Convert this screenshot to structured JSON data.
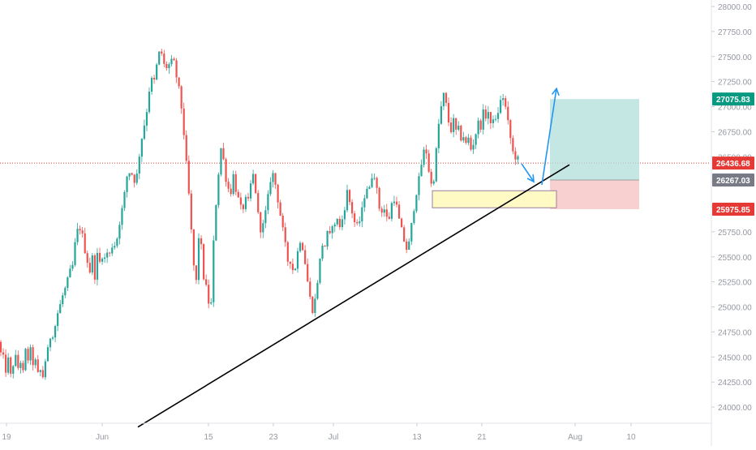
{
  "colors": {
    "background": "#ffffff",
    "up_candle": "#26a69a",
    "down_candle": "#ef5350",
    "axis_text": "#9598a1",
    "price_line": "#e53935",
    "profit_zone": "#b2dfdb",
    "loss_zone": "#f8c4c4",
    "demand_zone": "#fff9c4",
    "demand_border": "#9c7ca0",
    "arrow": "#2196f3",
    "trendline": "#000000",
    "tag_green": "#089981",
    "tag_red": "#e53935",
    "tag_gray": "#787b86"
  },
  "chart_data": {
    "type": "candlestick",
    "y_ticks": [
      "28000.00",
      "27750.00",
      "27500.00",
      "27250.00",
      "27000.00",
      "26750.00",
      "26500.00",
      "26250.00",
      "26000.00",
      "25750.00",
      "25500.00",
      "25250.00",
      "25000.00",
      "24750.00",
      "24500.00",
      "24250.00",
      "24000.00"
    ],
    "x_ticks": [
      "19",
      "Jun",
      "15",
      "23",
      "Jul",
      "13",
      "21",
      "Aug",
      "10"
    ],
    "ylim": [
      23800,
      28050
    ],
    "price_tags": [
      {
        "label": "27075.83",
        "value": 27075.83,
        "color": "green"
      },
      {
        "label": "26436.68",
        "value": 26436.68,
        "color": "red"
      },
      {
        "label": "26267.03",
        "value": 26267.03,
        "color": "gray"
      },
      {
        "label": "25975.85",
        "value": 25975.85,
        "color": "red"
      }
    ],
    "current_price": 26436.68,
    "position": {
      "target": 27075.83,
      "entry": 26267.03,
      "stop": 25975.85
    },
    "demand_zone": {
      "top": 26160,
      "bottom": 25990
    },
    "path": [
      [
        0,
        24650
      ],
      [
        2,
        24420
      ],
      [
        5,
        24520
      ],
      [
        8,
        24300
      ],
      [
        10,
        24480
      ],
      [
        14,
        24270
      ],
      [
        18,
        24550
      ],
      [
        22,
        24380
      ],
      [
        25,
        24480
      ],
      [
        28,
        24300
      ],
      [
        31,
        24580
      ],
      [
        34,
        24450
      ],
      [
        37,
        24600
      ],
      [
        40,
        24420
      ],
      [
        43,
        24500
      ],
      [
        46,
        24300
      ],
      [
        49,
        24400
      ],
      [
        52,
        24260
      ],
      [
        56,
        24470
      ],
      [
        60,
        24600
      ],
      [
        63,
        24750
      ],
      [
        66,
        24720
      ],
      [
        70,
        24900
      ],
      [
        73,
        25000
      ],
      [
        76,
        25050
      ],
      [
        79,
        25200
      ],
      [
        82,
        25150
      ],
      [
        85,
        25400
      ],
      [
        88,
        25300
      ],
      [
        92,
        25600
      ],
      [
        95,
        25750
      ],
      [
        98,
        25800
      ],
      [
        102,
        25700
      ],
      [
        105,
        25550
      ],
      [
        108,
        25450
      ],
      [
        111,
        25350
      ],
      [
        114,
        25500
      ],
      [
        117,
        25300
      ],
      [
        120,
        25520
      ],
      [
        124,
        25420
      ],
      [
        127,
        25560
      ],
      [
        130,
        25450
      ],
      [
        133,
        25580
      ],
      [
        136,
        25500
      ],
      [
        139,
        25650
      ],
      [
        143,
        25600
      ],
      [
        146,
        25800
      ],
      [
        149,
        25900
      ],
      [
        152,
        26050
      ],
      [
        155,
        26200
      ],
      [
        158,
        26400
      ],
      [
        161,
        26300
      ],
      [
        164,
        26350
      ],
      [
        167,
        26200
      ],
      [
        170,
        26400
      ],
      [
        173,
        26600
      ],
      [
        176,
        26750
      ],
      [
        180,
        26900
      ],
      [
        183,
        27100
      ],
      [
        186,
        27300
      ],
      [
        189,
        27200
      ],
      [
        192,
        27350
      ],
      [
        195,
        27500
      ],
      [
        198,
        27580
      ],
      [
        201,
        27460
      ],
      [
        204,
        27350
      ],
      [
        207,
        27450
      ],
      [
        210,
        27380
      ],
      [
        213,
        27520
      ],
      [
        216,
        27350
      ],
      [
        219,
        27250
      ],
      [
        222,
        27100
      ],
      [
        225,
        26900
      ],
      [
        228,
        26600
      ],
      [
        231,
        26300
      ],
      [
        234,
        26000
      ],
      [
        237,
        25600
      ],
      [
        239,
        25400
      ],
      [
        242,
        25250
      ],
      [
        245,
        25700
      ],
      [
        248,
        25600
      ],
      [
        251,
        25300
      ],
      [
        254,
        25200
      ],
      [
        257,
        25050
      ],
      [
        260,
        24980
      ],
      [
        263,
        25600
      ],
      [
        266,
        26000
      ],
      [
        269,
        26300
      ],
      [
        272,
        26600
      ],
      [
        275,
        26500
      ],
      [
        278,
        26300
      ],
      [
        281,
        26200
      ],
      [
        284,
        26100
      ],
      [
        287,
        26350
      ],
      [
        290,
        26200
      ],
      [
        293,
        26100
      ],
      [
        296,
        26000
      ],
      [
        299,
        25950
      ],
      [
        302,
        26100
      ],
      [
        305,
        26000
      ],
      [
        308,
        26150
      ],
      [
        311,
        26350
      ],
      [
        314,
        26250
      ],
      [
        317,
        26000
      ],
      [
        320,
        25800
      ],
      [
        323,
        25750
      ],
      [
        326,
        25900
      ],
      [
        329,
        26000
      ],
      [
        332,
        26200
      ],
      [
        335,
        26350
      ],
      [
        338,
        26300
      ],
      [
        341,
        26150
      ],
      [
        344,
        26000
      ],
      [
        347,
        25850
      ],
      [
        350,
        25700
      ],
      [
        353,
        25550
      ],
      [
        356,
        25400
      ],
      [
        359,
        25500
      ],
      [
        362,
        25300
      ],
      [
        365,
        25450
      ],
      [
        368,
        25600
      ],
      [
        371,
        25700
      ],
      [
        374,
        25550
      ],
      [
        377,
        25400
      ],
      [
        380,
        25200
      ],
      [
        383,
        25050
      ],
      [
        386,
        24950
      ],
      [
        389,
        25100
      ],
      [
        392,
        25300
      ],
      [
        395,
        25500
      ],
      [
        398,
        25650
      ],
      [
        401,
        25600
      ],
      [
        404,
        25750
      ],
      [
        407,
        25700
      ],
      [
        410,
        25850
      ],
      [
        413,
        25800
      ],
      [
        416,
        25900
      ],
      [
        419,
        25780
      ],
      [
        422,
        25880
      ],
      [
        425,
        26000
      ],
      [
        428,
        26150
      ],
      [
        431,
        26050
      ],
      [
        434,
        25950
      ],
      [
        437,
        25850
      ],
      [
        440,
        25800
      ],
      [
        443,
        25850
      ],
      [
        446,
        25950
      ],
      [
        449,
        26100
      ],
      [
        452,
        26200
      ],
      [
        455,
        26150
      ],
      [
        458,
        26300
      ],
      [
        461,
        26350
      ],
      [
        464,
        26200
      ],
      [
        467,
        26000
      ],
      [
        470,
        25950
      ],
      [
        473,
        26000
      ],
      [
        476,
        25900
      ],
      [
        479,
        25850
      ],
      [
        482,
        26000
      ],
      [
        485,
        26100
      ],
      [
        488,
        26050
      ],
      [
        491,
        25900
      ],
      [
        494,
        25800
      ],
      [
        497,
        25700
      ],
      [
        500,
        25600
      ],
      [
        503,
        25550
      ],
      [
        506,
        25750
      ],
      [
        509,
        25900
      ],
      [
        512,
        26100
      ],
      [
        515,
        26200
      ],
      [
        518,
        26350
      ],
      [
        521,
        26500
      ],
      [
        524,
        26600
      ],
      [
        527,
        26500
      ],
      [
        530,
        26250
      ],
      [
        533,
        26200
      ],
      [
        536,
        26350
      ],
      [
        539,
        26700
      ],
      [
        542,
        26900
      ],
      [
        545,
        27050
      ],
      [
        548,
        27150
      ],
      [
        551,
        26950
      ],
      [
        554,
        26800
      ],
      [
        557,
        26750
      ],
      [
        560,
        26900
      ],
      [
        563,
        26700
      ],
      [
        566,
        26800
      ],
      [
        569,
        26650
      ],
      [
        572,
        26720
      ],
      [
        575,
        26600
      ],
      [
        578,
        26700
      ],
      [
        581,
        26550
      ],
      [
        584,
        26650
      ],
      [
        587,
        26750
      ],
      [
        590,
        26850
      ],
      [
        593,
        26800
      ],
      [
        596,
        26950
      ],
      [
        599,
        26900
      ],
      [
        602,
        26950
      ],
      [
        605,
        26800
      ],
      [
        608,
        26900
      ],
      [
        611,
        26850
      ],
      [
        614,
        26950
      ],
      [
        617,
        27050
      ],
      [
        620,
        27100
      ],
      [
        623,
        27000
      ],
      [
        626,
        26850
      ],
      [
        629,
        26700
      ],
      [
        632,
        26550
      ],
      [
        635,
        26500
      ],
      [
        638,
        26480
      ],
      [
        641,
        26440
      ]
    ],
    "annotations": [
      {
        "type": "trendline",
        "from": [
          170,
          23800
        ],
        "to": [
          702,
          26420
        ]
      },
      {
        "type": "arrow",
        "points": [
          [
            643,
            26430
          ],
          [
            658,
            26250
          ]
        ]
      },
      {
        "type": "arrow",
        "points": [
          [
            668,
            26220
          ],
          [
            686,
            27180
          ]
        ]
      }
    ]
  }
}
